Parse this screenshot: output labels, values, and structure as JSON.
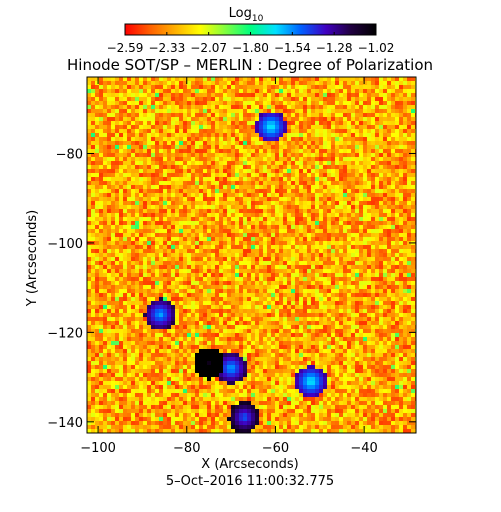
{
  "chart_data": {
    "type": "heatmap",
    "title": "Hinode SOT/SP – MERLIN : Degree of Polarization",
    "xlabel": "X (Arcseconds)",
    "ylabel": "Y (Arcseconds)",
    "timestamp": "5–Oct–2016 11:00:32.775",
    "xlim": [
      -102.5,
      -28.3
    ],
    "ylim": [
      -142.5,
      -62.9
    ],
    "x_ticks": [
      -100,
      -80,
      -60,
      -40
    ],
    "x_tick_labels": [
      "−100",
      "−80",
      "−60",
      "−40"
    ],
    "y_ticks": [
      -80,
      -100,
      -120,
      -140
    ],
    "y_tick_labels": [
      "−80",
      "−100",
      "−120",
      "−140"
    ],
    "colorbar": {
      "label": "Log",
      "label_subscript": "10",
      "range": [
        -2.59,
        -1.02
      ],
      "tick_labels": [
        "−2.59",
        "−2.33",
        "−2.07",
        "−1.80",
        "−1.54",
        "−1.28",
        "−1.02"
      ],
      "colormap": [
        "#ff0000",
        "#ff6000",
        "#ffb000",
        "#ffff00",
        "#80ff40",
        "#00ff80",
        "#00e0ff",
        "#0060ff",
        "#4000c0",
        "#200040",
        "#000000"
      ]
    },
    "notable_features": [
      {
        "x": -75,
        "y": -127,
        "value": -1.1
      },
      {
        "x": -67,
        "y": -139,
        "value": -1.5
      },
      {
        "x": -86,
        "y": -116,
        "value": -1.6
      },
      {
        "x": -61,
        "y": -74,
        "value": -1.7
      },
      {
        "x": -70,
        "y": -128,
        "value": -1.6
      },
      {
        "x": -52,
        "y": -131,
        "value": -1.7
      }
    ]
  }
}
